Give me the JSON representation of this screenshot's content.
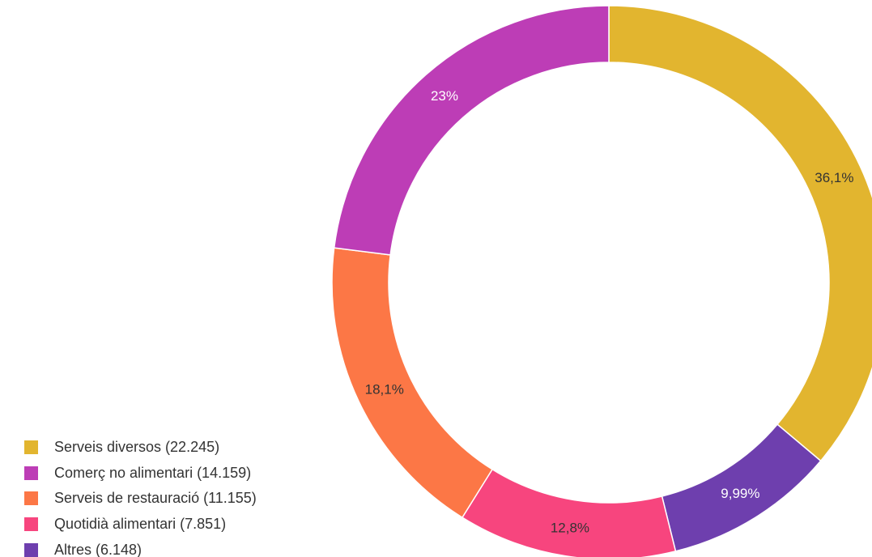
{
  "chart_data": {
    "type": "pie",
    "variant": "donut",
    "title": "",
    "slices": [
      {
        "name": "Serveis diversos",
        "value": 22245,
        "percent_label": "36,1%",
        "color": "#E2B52F",
        "label_color": "#333333",
        "legend_text": "Serveis diversos (22.245)"
      },
      {
        "name": "Altres",
        "value": 6148,
        "percent_label": "9,99%",
        "color": "#6E3FAE",
        "label_color": "#ffffff",
        "legend_text": "Altres (6.148)"
      },
      {
        "name": "Quotidià alimentari",
        "value": 7851,
        "percent_label": "12,8%",
        "color": "#F7457E",
        "label_color": "#333333",
        "legend_text": "Quotidià alimentari (7.851)"
      },
      {
        "name": "Serveis de restauració",
        "value": 11155,
        "percent_label": "18,1%",
        "color": "#FC7746",
        "label_color": "#333333",
        "legend_text": "Serveis de restauració (11.155)"
      },
      {
        "name": "Comerç no alimentari",
        "value": 14159,
        "percent_label": "23%",
        "color": "#BD3DB6",
        "label_color": "#ffffff",
        "legend_text": "Comerç no alimentari (14.159)"
      }
    ],
    "legend": {
      "placement": "bottom-left",
      "items": [
        {
          "text": "Serveis diversos (22.245)",
          "color": "#E2B52F"
        },
        {
          "text": "Comerç no alimentari (14.159)",
          "color": "#BD3DB6"
        },
        {
          "text": "Serveis de restauració (11.155)",
          "color": "#FC7746"
        },
        {
          "text": "Quotidià alimentari (7.851)",
          "color": "#F7457E"
        },
        {
          "text": "Altres (6.148)",
          "color": "#6E3FAE"
        }
      ]
    }
  }
}
